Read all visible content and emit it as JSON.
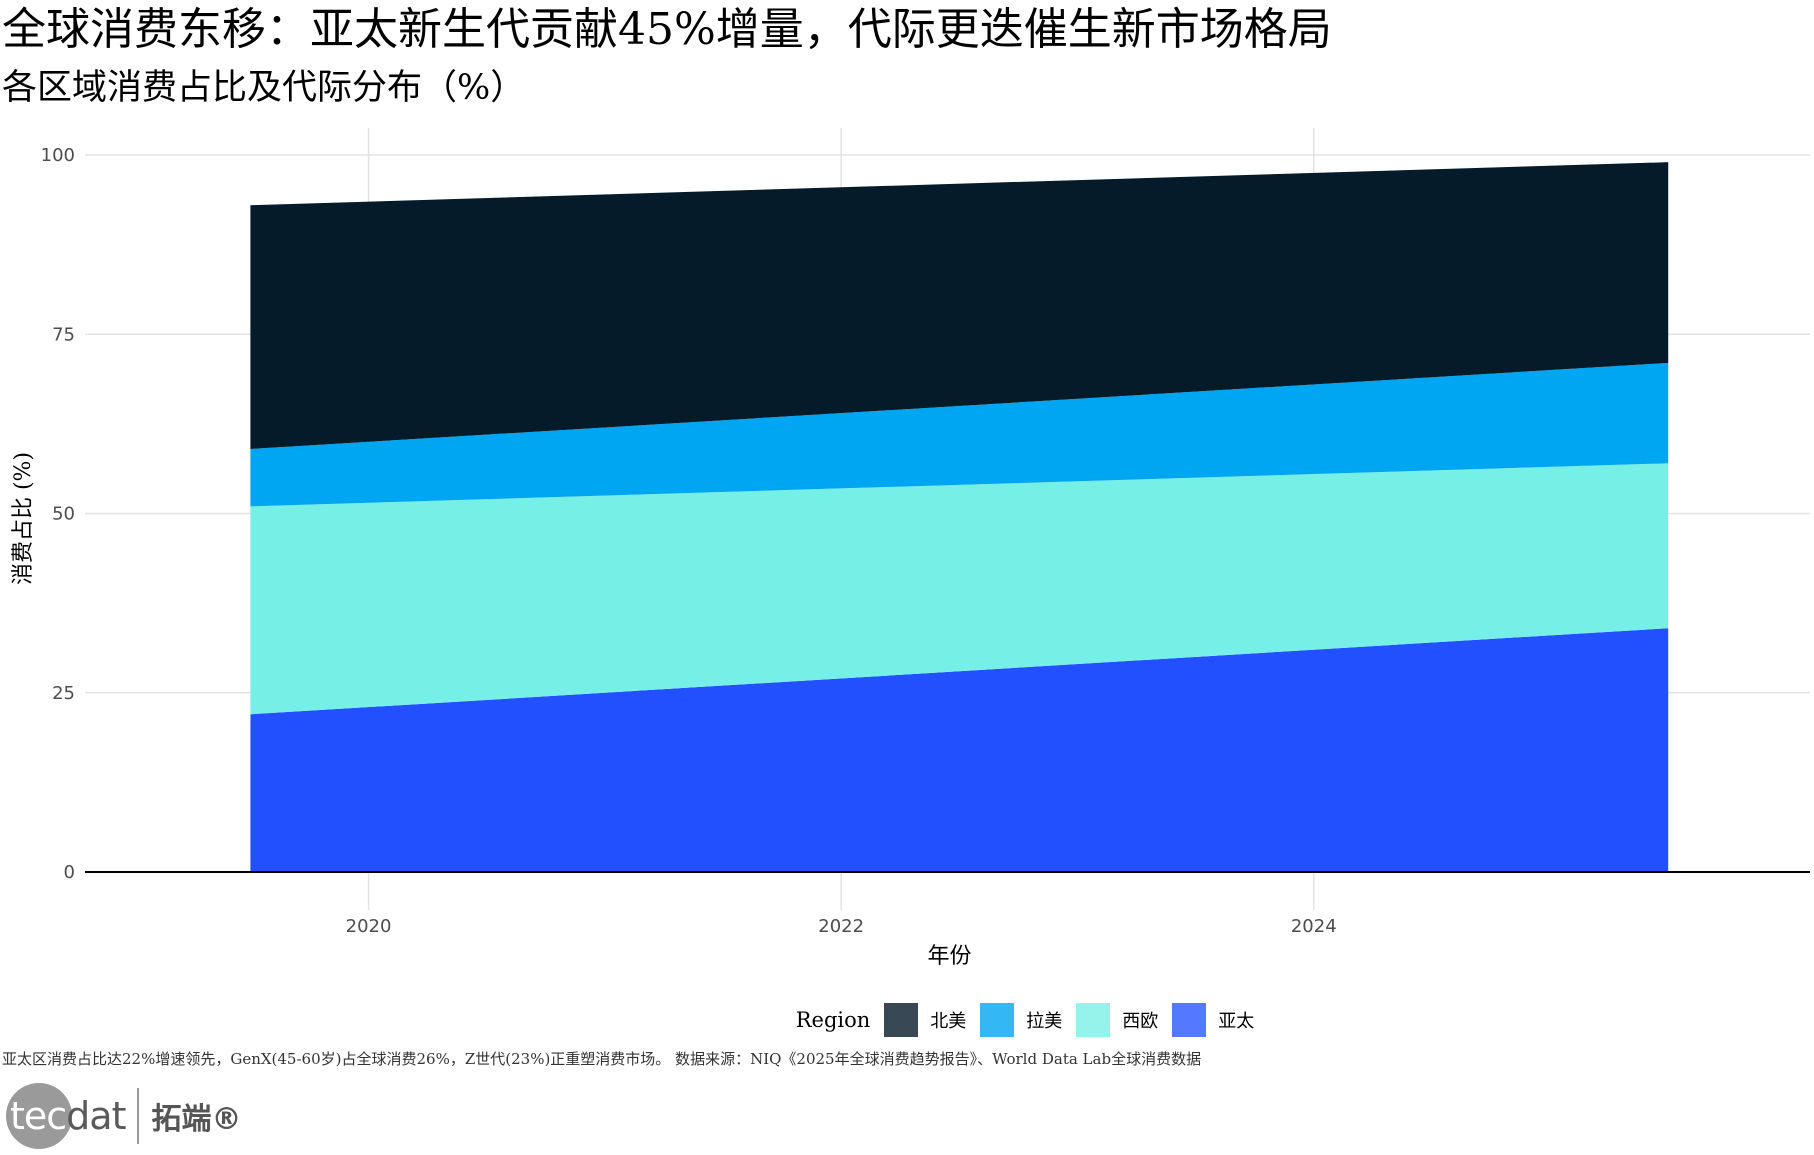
{
  "title": "全球消费东移：亚太新生代贡献45%增量，代际更迭催生新市场格局",
  "subtitle": "各区域消费占比及代际分布（%）",
  "caption": "亚太区消费占比达22%增速领先，GenX(45-60岁)占全球消费26%，Z世代(23%)正重塑消费市场。 数据来源：NIQ《2025年全球消费趋势报告》、World Data Lab全球消费数据",
  "logo": {
    "tec": "tec",
    "dat": "dat",
    "cn": "拓端®"
  },
  "chart_data": {
    "type": "area",
    "stacked": true,
    "x": [
      2019.5,
      2025.5
    ],
    "xlabel": "年份",
    "ylabel": "消费占比 (%)",
    "xlim": [
      2018.8,
      2026.1
    ],
    "ylim": [
      0,
      100
    ],
    "xticks": [
      2020,
      2022,
      2024
    ],
    "yticks": [
      0,
      25,
      50,
      75,
      100
    ],
    "grid": true,
    "legend_title": "Region",
    "legend_position": "bottom",
    "series": [
      {
        "name": "亚太",
        "values": [
          22,
          34
        ],
        "color": "#2350ff",
        "legend_color": "#5478ff"
      },
      {
        "name": "西欧",
        "values": [
          29,
          23
        ],
        "color": "#76efe6",
        "legend_color": "#95f3ec"
      },
      {
        "name": "拉美",
        "values": [
          8,
          14
        ],
        "color": "#00a6f2",
        "legend_color": "#33b8f5"
      },
      {
        "name": "北美",
        "values": [
          34,
          28
        ],
        "color": "#061b2a",
        "legend_color": "#384855"
      }
    ],
    "legend_order": [
      "北美",
      "拉美",
      "西欧",
      "亚太"
    ]
  }
}
